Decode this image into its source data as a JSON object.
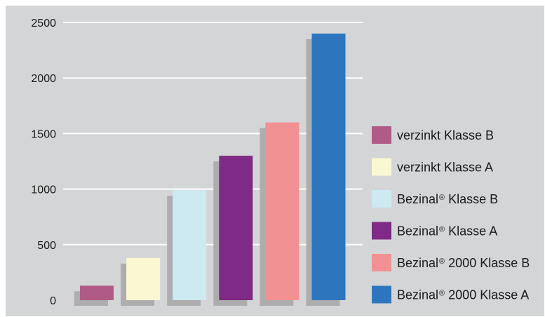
{
  "chart_data": {
    "type": "bar",
    "categories": [
      "verzinkt Klasse B",
      "verzinkt Klasse A",
      "Bezinal® Klasse B",
      "Bezinal® Klasse A",
      "Bezinal® 2000 Klasse B",
      "Bezinal® 2000 Klasse A"
    ],
    "values": [
      130,
      380,
      990,
      1300,
      1600,
      2400
    ],
    "colors": [
      "#b05a86",
      "#faf8d3",
      "#cde9f2",
      "#7e2a86",
      "#f29193",
      "#2d76be"
    ],
    "ylim": [
      0,
      2500
    ],
    "yticks": [
      "0",
      "500",
      "1000",
      "1500",
      "2000",
      "2500"
    ],
    "grid": true,
    "legend_position": "right",
    "legend": [
      {
        "main": "verzinkt Klasse B",
        "reg": "",
        "rest": ""
      },
      {
        "main": "verzinkt Klasse A",
        "reg": "",
        "rest": ""
      },
      {
        "main": "Bezinal",
        "reg": "®",
        "rest": " Klasse B"
      },
      {
        "main": "Bezinal",
        "reg": "®",
        "rest": " Klasse A"
      },
      {
        "main": "Bezinal",
        "reg": "®",
        "rest": " 2000 Klasse B"
      },
      {
        "main": "Bezinal",
        "reg": "®",
        "rest": " 2000 Klasse A"
      }
    ],
    "title": "",
    "xlabel": "",
    "ylabel": ""
  }
}
